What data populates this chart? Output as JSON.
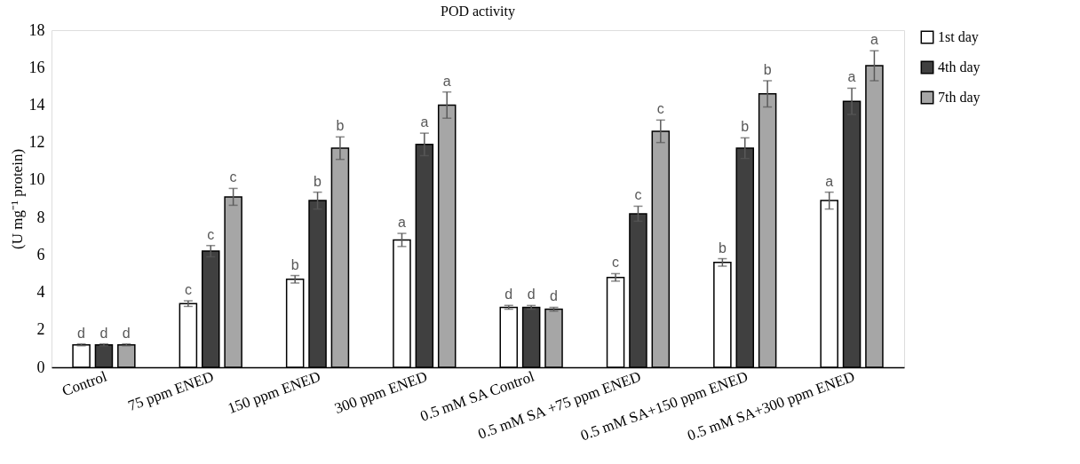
{
  "chart_data": {
    "type": "bar",
    "title": "POD activity",
    "ylabel": "(U mg⁻¹ protein)",
    "categories": [
      "Control",
      "75 ppm ENED",
      "150 ppm ENED",
      "300 ppm ENED",
      "0.5 mM SA Control",
      "0.5 mM SA +75 ppm ENED",
      "0.5 mM SA+150 ppm ENED",
      "0.5 mM SA+300 ppm ENED"
    ],
    "series": [
      {
        "name": "1st day",
        "color": "#ffffff",
        "values": [
          1.2,
          3.4,
          4.7,
          6.8,
          3.2,
          4.8,
          5.6,
          8.9
        ],
        "errors": [
          0.05,
          0.15,
          0.2,
          0.35,
          0.1,
          0.2,
          0.2,
          0.45
        ],
        "value_labels": [
          "d",
          "c",
          "b",
          "a",
          "d",
          "c",
          "b",
          "a"
        ]
      },
      {
        "name": "4th day",
        "color": "#404040",
        "values": [
          1.2,
          6.2,
          8.9,
          11.9,
          3.2,
          8.2,
          11.7,
          14.2
        ],
        "errors": [
          0.05,
          0.3,
          0.45,
          0.6,
          0.1,
          0.4,
          0.55,
          0.7
        ],
        "value_labels": [
          "d",
          "c",
          "b",
          "a",
          "d",
          "c",
          "b",
          "a"
        ]
      },
      {
        "name": "7th day",
        "color": "#a6a6a6",
        "values": [
          1.2,
          9.1,
          11.7,
          14.0,
          3.1,
          12.6,
          14.6,
          16.1
        ],
        "errors": [
          0.05,
          0.45,
          0.6,
          0.7,
          0.1,
          0.6,
          0.7,
          0.8
        ],
        "value_labels": [
          "d",
          "c",
          "b",
          "a",
          "d",
          "c",
          "b",
          "a"
        ]
      }
    ],
    "ylim": [
      0,
      18
    ],
    "yticks": [
      0,
      2,
      4,
      6,
      8,
      10,
      12,
      14,
      16,
      18
    ],
    "grid": false,
    "legend": "right"
  }
}
